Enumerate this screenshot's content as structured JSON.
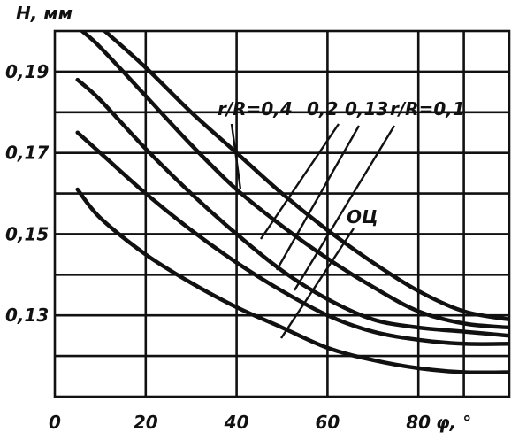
{
  "chart_data": {
    "type": "line",
    "xlabel": "φ, °",
    "ylabel": "H, мм",
    "xlim": [
      0,
      100
    ],
    "ylim": [
      0.11,
      0.2
    ],
    "x_ticks": [
      {
        "value": 0,
        "label": "0"
      },
      {
        "value": 20,
        "label": "20"
      },
      {
        "value": 40,
        "label": "40"
      },
      {
        "value": 60,
        "label": "60"
      },
      {
        "value": 80,
        "label": "80"
      }
    ],
    "y_ticks": [
      {
        "value": 0.19,
        "label": "0,19"
      },
      {
        "value": 0.17,
        "label": "0,17"
      },
      {
        "value": 0.15,
        "label": "0,15"
      },
      {
        "value": 0.13,
        "label": "0,13"
      }
    ],
    "grid": true,
    "series": [
      {
        "name": "r/R=0,4",
        "x": [
          11,
          20,
          30,
          40,
          50,
          60,
          70,
          80,
          90,
          100
        ],
        "y": [
          0.2,
          0.191,
          0.18,
          0.17,
          0.16,
          0.151,
          0.143,
          0.136,
          0.131,
          0.129
        ]
      },
      {
        "name": "0,2",
        "x": [
          6,
          10,
          20,
          30,
          40,
          50,
          60,
          70,
          80,
          90,
          100
        ],
        "y": [
          0.2,
          0.196,
          0.184,
          0.172,
          0.161,
          0.152,
          0.144,
          0.137,
          0.131,
          0.128,
          0.127
        ]
      },
      {
        "name": "0,13",
        "x": [
          5,
          10,
          20,
          30,
          40,
          50,
          60,
          70,
          80,
          90,
          100
        ],
        "y": [
          0.188,
          0.183,
          0.171,
          0.16,
          0.15,
          0.141,
          0.134,
          0.129,
          0.127,
          0.126,
          0.125
        ]
      },
      {
        "name": "r/R=0,1",
        "x": [
          5,
          10,
          20,
          30,
          40,
          50,
          60,
          70,
          80,
          90,
          100
        ],
        "y": [
          0.175,
          0.17,
          0.16,
          0.151,
          0.143,
          0.136,
          0.13,
          0.126,
          0.124,
          0.123,
          0.123
        ]
      },
      {
        "name": "ОЦ",
        "x": [
          5,
          10,
          20,
          30,
          40,
          50,
          60,
          70,
          80,
          90,
          100
        ],
        "y": [
          0.161,
          0.154,
          0.145,
          0.138,
          0.132,
          0.127,
          0.122,
          0.119,
          0.117,
          0.116,
          0.116
        ]
      }
    ],
    "annotations": [
      {
        "text": "r/R=0,4",
        "series": "r/R=0,4"
      },
      {
        "text": "0,2",
        "series": "0,2"
      },
      {
        "text": "0,13",
        "series": "0,13"
      },
      {
        "text": "r/R=0,1",
        "series": "r/R=0,1"
      },
      {
        "text": "ОЦ",
        "series": "ОЦ"
      }
    ]
  }
}
